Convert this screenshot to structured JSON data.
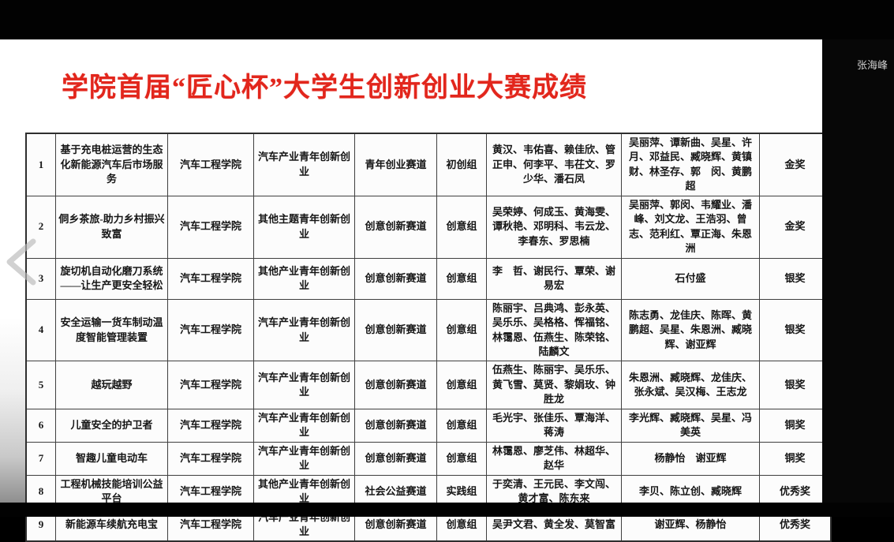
{
  "meeting": {
    "participant_name": "张海峰"
  },
  "slide": {
    "title": "学院首届“匠心杯”大学生创新创业大赛成绩",
    "title_color": "#e2261c",
    "table": {
      "rows": [
        {
          "no": "1",
          "project": "基于充电桩运营的生态化新能源汽车后市场服务",
          "college": "汽车工程学院",
          "category": "汽车产业青年创新创业",
          "channel": "青年创业赛道",
          "group": "初创组",
          "members": "黄汉、韦佑喜、赖佳欣、管正申、何李平、韦茌文、罗少华、潘石凤",
          "advisors": "吴丽萍、谭新曲、吴星、许月、邓益民、臧晓辉、黄镇财、林圣存、郭　闵、黄鹏超",
          "award": "金奖"
        },
        {
          "no": "2",
          "project": "侗乡茶旅-助力乡村振兴致富",
          "college": "汽车工程学院",
          "category": "其他主题青年创新创业",
          "channel": "创意创新赛道",
          "group": "创意组",
          "members": "吴荣婷、何成玉、黄海雯、谭秋艳、邓明科、韦云龙、李春东、罗思楠",
          "advisors": "吴丽萍、郭闵、韦耀业、潘峰、刘文龙、王浩羽、曾志、范利红、覃正海、朱恩洲",
          "award": "金奖"
        },
        {
          "no": "3",
          "project": "旋切机自动化磨刀系统——让生产更安全轻松",
          "college": "汽车工程学院",
          "category": "其他产业青年创新创业",
          "channel": "创意创新赛道",
          "group": "创意组",
          "members": "李　哲、谢民行、覃荣、谢易宏",
          "advisors": "石付盛",
          "award": "银奖"
        },
        {
          "no": "4",
          "project": "安全运输一货车制动温度智能管理装置",
          "college": "汽车工程学院",
          "category": "汽车产业青年创新创业",
          "channel": "创意创新赛道",
          "group": "创意组",
          "members": "陈丽宇、吕典鸿、彭永英、吴乐乐、吴格格、恽福铭、林霭恩、伍燕生、陈荣铭、陆麟文",
          "advisors": "陈志勇、龙佳庆、陈晖、黄鹏超、吴星、朱恩洲、臧晓辉、谢亚辉",
          "award": "银奖"
        },
        {
          "no": "5",
          "project": "越玩越野",
          "college": "汽车工程学院",
          "category": "汽车产业青年创新创业",
          "channel": "创意创新赛道",
          "group": "创意组",
          "members": "伍燕生、陈丽宇、吴乐乐、黄飞雪、莫贤、黎娟玫、钟胜龙",
          "advisors": "朱恩洲、臧晓辉、龙佳庆、张永斌、吴汉梅、王志龙",
          "award": "银奖"
        },
        {
          "no": "6",
          "project": "儿童安全的护卫者",
          "college": "汽车工程学院",
          "category": "汽车产业青年创新创业",
          "channel": "创意创新赛道",
          "group": "创意组",
          "members": "毛光宇、张佳乐、覃海洋、蒋涛",
          "advisors": "李光辉、臧晓辉、吴星、冯美英",
          "award": "铜奖"
        },
        {
          "no": "7",
          "project": "智趣儿童电动车",
          "college": "汽车工程学院",
          "category": "汽车产业青年创新创业",
          "channel": "创意创新赛道",
          "group": "创意组",
          "members": "林霭恩、廖芝伟、林超华、赵华",
          "advisors": "杨静怡　谢亚辉",
          "award": "铜奖"
        },
        {
          "no": "8",
          "project": "工程机械技能培训公益平台",
          "college": "汽车工程学院",
          "category": "其他产业青年创新创业",
          "channel": "社会公益赛道",
          "group": "实践组",
          "members": "于奕清、王元民、李文闯、黄才富、陈东来",
          "advisors": "李贝、陈立创、臧晓辉",
          "award": "优秀奖"
        },
        {
          "no": "9",
          "project": "新能源车续航充电宝",
          "college": "汽车工程学院",
          "category": "汽车产业青年创新创业",
          "channel": "创意创新赛道",
          "group": "创意组",
          "members": "吴尹文君、黄全发、莫智富",
          "advisors": "谢亚辉、杨静怡",
          "award": "优秀奖"
        }
      ]
    }
  }
}
